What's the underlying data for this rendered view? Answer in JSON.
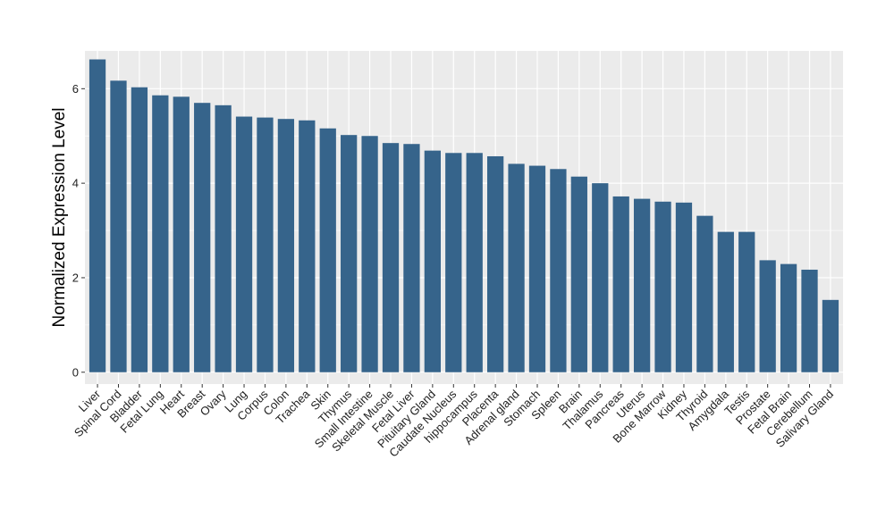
{
  "chart_data": {
    "type": "bar",
    "title": "",
    "xlabel": "",
    "ylabel": "Normalized Expression Level",
    "ylim": [
      -0.25,
      6.8
    ],
    "yticks": [
      0,
      2,
      4,
      6
    ],
    "grid": true,
    "legend": "none",
    "bar_color": "#36648b",
    "panel_color": "#ebebeb",
    "grid_color": "#ffffff",
    "categories": [
      "Liver",
      "Spinal Cord",
      "Bladder",
      "Fetal Lung",
      "Heart",
      "Breast",
      "Ovary",
      "Lung",
      "Corpus",
      "Colon",
      "Trachea",
      "Skin",
      "Thymus",
      "Small Intestine",
      "Skeletal Muscle",
      "Fetal Liver",
      "Pituitary Gland",
      "Caudate Nucleus",
      "hippocampus",
      "Placenta",
      "Adrenal gland",
      "Stomach",
      "Spleen",
      "Brain",
      "Thalamus",
      "Pancreas",
      "Uterus",
      "Bone Marrow",
      "Kidney",
      "Thyroid",
      "Amygdala",
      "Testis",
      "Prostate",
      "Fetal Brain",
      "Cerebellum",
      "Salivary Gland"
    ],
    "values": [
      6.62,
      6.17,
      6.03,
      5.86,
      5.83,
      5.7,
      5.65,
      5.41,
      5.39,
      5.36,
      5.33,
      5.16,
      5.02,
      5.0,
      4.85,
      4.83,
      4.69,
      4.64,
      4.64,
      4.57,
      4.41,
      4.37,
      4.3,
      4.14,
      4.0,
      3.72,
      3.67,
      3.61,
      3.59,
      3.31,
      2.97,
      2.97,
      2.37,
      2.29,
      2.17,
      1.53
    ]
  }
}
